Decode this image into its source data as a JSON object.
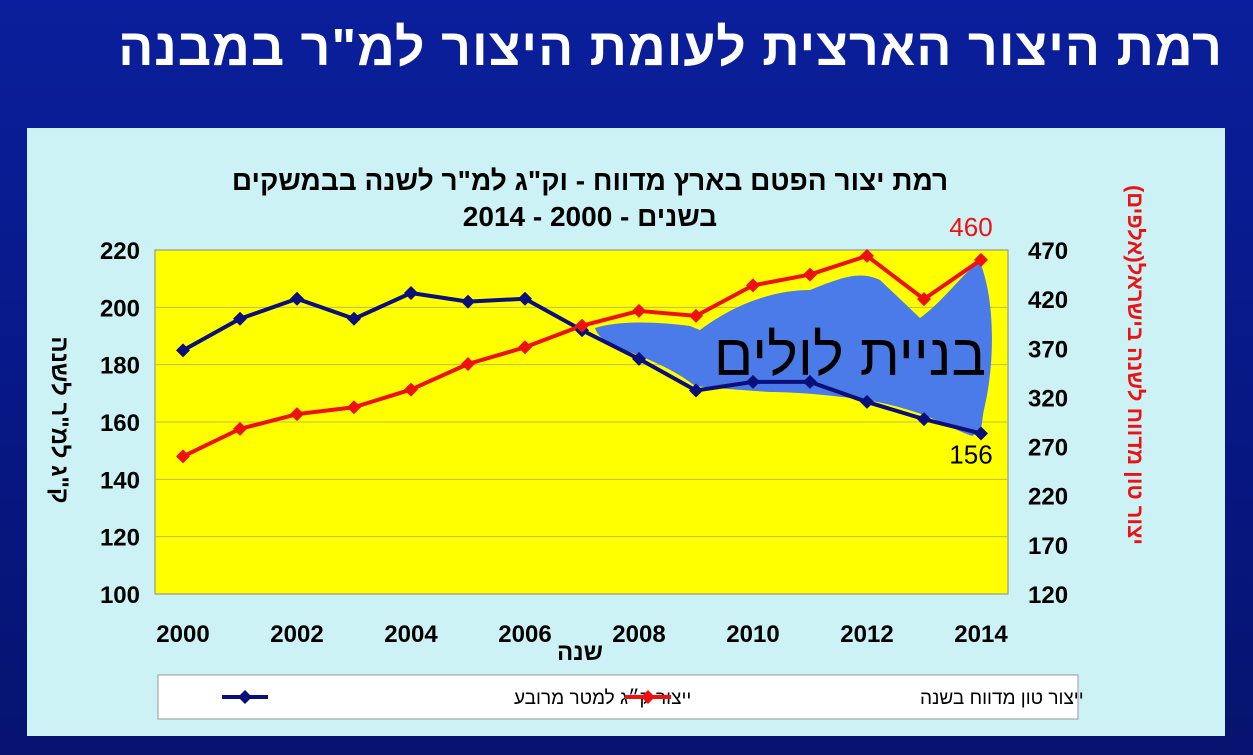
{
  "slide": {
    "title": "רמת היצור הארצית לעומת היצור למ\"ר במבנה"
  },
  "chart_data": {
    "type": "line",
    "title_line1": "רמת יצור הפטם בארץ מדווח  - וק\"ג למ\"ר לשנה בבמשקים",
    "title_line2": "בשנים  - 2000 - 2014",
    "xlabel": "שנה",
    "ylabel_left": "ק\"ג למ\"ר לשנה",
    "ylabel_right": "יצור טון מדווח לשנה בישראל(אלפים)",
    "x": [
      2000,
      2001,
      2002,
      2003,
      2004,
      2005,
      2006,
      2007,
      2008,
      2009,
      2010,
      2011,
      2012,
      2013,
      2014
    ],
    "x_tick_labels": [
      "2000",
      "2002",
      "2004",
      "2006",
      "2008",
      "2010",
      "2012",
      "2014"
    ],
    "ylim_left": [
      100,
      220
    ],
    "ylim_right": [
      120,
      470
    ],
    "yticks_left": [
      100,
      120,
      140,
      160,
      180,
      200,
      220
    ],
    "yticks_right": [
      120,
      170,
      220,
      270,
      320,
      370,
      420,
      470
    ],
    "series": [
      {
        "name": "ייצור ק״ג למטר מרובע",
        "axis": "left",
        "color": "#0a0f7a",
        "values": [
          185,
          196,
          203,
          196,
          205,
          202,
          203,
          192,
          182,
          171,
          174,
          174,
          167,
          161,
          156
        ]
      },
      {
        "name": "ייצור טון מדווח בשנה",
        "axis": "right",
        "color": "#ee1111",
        "values": [
          260,
          288,
          303,
          310,
          328,
          354,
          371,
          393,
          408,
          403,
          434,
          445,
          464,
          420,
          460
        ]
      }
    ],
    "data_labels": [
      {
        "series": 1,
        "index": 14,
        "text": "460",
        "color": "#ee1111"
      },
      {
        "series": 0,
        "index": 14,
        "text": "156",
        "color": "#000000"
      }
    ],
    "annotation": {
      "text": "בניית לולים",
      "fill": "#4a7be8"
    },
    "plot_background": "#ffff00",
    "grid": true,
    "legend_position": "bottom"
  }
}
